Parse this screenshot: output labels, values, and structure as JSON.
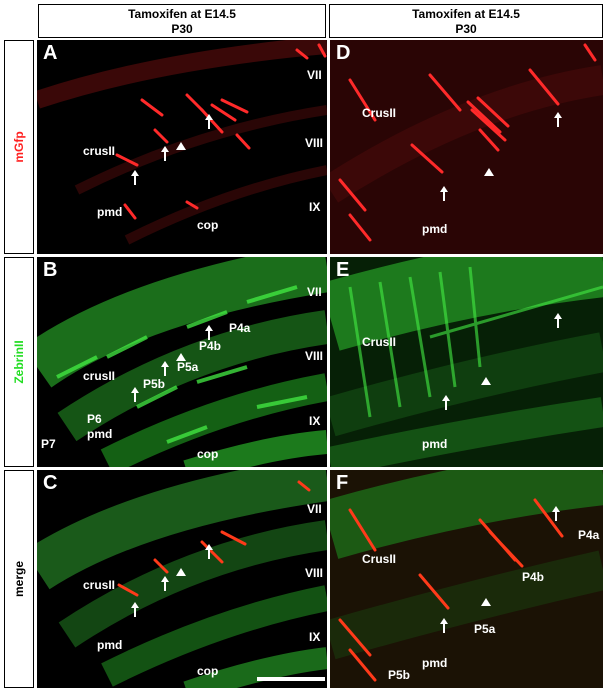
{
  "columns": [
    {
      "title": "Tamoxifen at E14.5",
      "subtitle": "P30"
    },
    {
      "title": "Tamoxifen at E14.5",
      "subtitle": "P30"
    }
  ],
  "rows": [
    {
      "label": "mGfp",
      "color": "#ff2020"
    },
    {
      "label": "ZebrinII",
      "color": "#22dd22"
    },
    {
      "label": "merge",
      "color": "#000000"
    }
  ],
  "panels": {
    "A": {
      "letter": "A",
      "labels": {
        "crus": "crusII",
        "pmd": "pmd",
        "cop": "cop",
        "vii": "VII",
        "viii": "VIII",
        "ix": "IX"
      }
    },
    "B": {
      "letter": "B",
      "labels": {
        "crus": "crusII",
        "p4a": "P4a",
        "p4b": "P4b",
        "p5a": "P5a",
        "p5b": "P5b",
        "p6": "P6",
        "pmd": "pmd",
        "p7": "P7",
        "cop": "cop",
        "vii": "VII",
        "viii": "VIII",
        "ix": "IX"
      }
    },
    "C": {
      "letter": "C",
      "labels": {
        "crus": "crusII",
        "pmd": "pmd",
        "cop": "cop",
        "vii": "VII",
        "viii": "VIII",
        "ix": "IX"
      }
    },
    "D": {
      "letter": "D",
      "labels": {
        "crus": "CrusII",
        "pmd": "pmd"
      }
    },
    "E": {
      "letter": "E",
      "labels": {
        "crus": "CrusII",
        "pmd": "pmd"
      }
    },
    "F": {
      "letter": "F",
      "labels": {
        "crus": "CrusII",
        "p4a": "P4a",
        "p4b": "P4b",
        "p5a": "P5a",
        "p5b": "P5b",
        "pmd": "pmd"
      }
    }
  },
  "colors": {
    "mgfp": "#ff2a2a",
    "zebrin": "#33dd33"
  }
}
